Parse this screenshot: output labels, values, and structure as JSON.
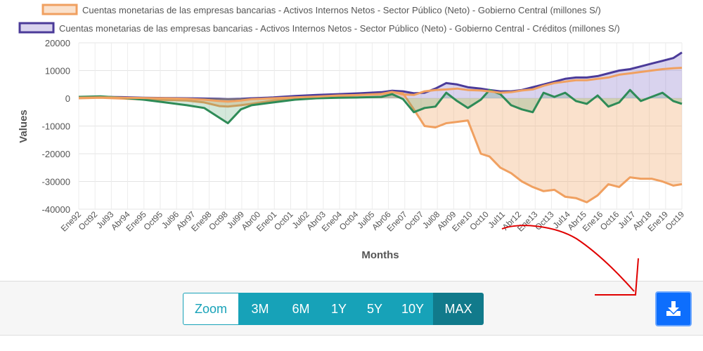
{
  "chart_data": {
    "type": "area",
    "title": "",
    "xlabel": "Months",
    "ylabel": "Values",
    "ylim": [
      -40000,
      20000
    ],
    "y_ticks": [
      "20000",
      "10000",
      "0",
      "-10000",
      "-20000",
      "-30000",
      "-40000"
    ],
    "x_tick_labels": [
      "Ene92",
      "Oct92",
      "Jul93",
      "Abr94",
      "Ene95",
      "Oct95",
      "Jul96",
      "Abr97",
      "Ene98",
      "Oct98",
      "Jul99",
      "Abr00",
      "Ene01",
      "Oct01",
      "Jul02",
      "Abr03",
      "Ene04",
      "Oct04",
      "Jul05",
      "Abr06",
      "Ene07",
      "Oct07",
      "Jul08",
      "Abr09",
      "Ene10",
      "Oct10",
      "Jul11",
      "Abr12",
      "Ene13",
      "Oct13",
      "Jul14",
      "Abr15",
      "Ene16",
      "Oct16",
      "Jul17",
      "Abr18",
      "Ene19",
      "Oct19"
    ],
    "x": [
      1992.0,
      1993.0,
      1994.0,
      1995.0,
      1996.0,
      1997.0,
      1997.8,
      1998.5,
      1998.9,
      1999.5,
      2000.0,
      2001.0,
      2002.0,
      2003.0,
      2004.0,
      2005.0,
      2006.0,
      2006.5,
      2007.0,
      2007.5,
      2008.0,
      2008.5,
      2009.0,
      2009.5,
      2010.0,
      2010.6,
      2011.0,
      2011.5,
      2012.0,
      2012.5,
      2013.0,
      2013.5,
      2014.0,
      2014.5,
      2015.0,
      2015.5,
      2016.0,
      2016.5,
      2017.0,
      2017.5,
      2018.0,
      2018.5,
      2019.0,
      2019.5,
      2019.9
    ],
    "series": [
      {
        "name": "Cuentas monetarias de las empresas bancarias - Activos Internos Netos - Sector Público (Neto) - Gobierno Central (millones S/)",
        "color": "#f0a060",
        "fill": "rgba(242,170,110,0.35)",
        "values": [
          0,
          200,
          -100,
          -400,
          -600,
          -800,
          -1500,
          -2800,
          -3000,
          -2500,
          -2000,
          -800,
          0,
          400,
          800,
          1200,
          1500,
          2200,
          1800,
          -4000,
          -10000,
          -10500,
          -9000,
          -8500,
          -8000,
          -20000,
          -21000,
          -25000,
          -27000,
          -30000,
          -32000,
          -33500,
          -33000,
          -35500,
          -36000,
          -37500,
          -35000,
          -31000,
          -32000,
          -28500,
          -29000,
          -29000,
          -30000,
          -31500,
          -31000
        ]
      },
      {
        "name": "Cuentas monetarias de las empresas bancarias - Activos Internos Netos - Sector Público (Neto) - Gobierno Central - Créditos (millones S/)",
        "color": "#4b3b99",
        "fill": "rgba(130,110,200,0.30)",
        "values": [
          300,
          500,
          400,
          200,
          100,
          0,
          -100,
          -200,
          -300,
          -200,
          0,
          300,
          800,
          1200,
          1500,
          1800,
          2200,
          2700,
          2500,
          1800,
          2000,
          3500,
          5500,
          5000,
          4000,
          3500,
          3000,
          2500,
          2500,
          3000,
          4000,
          5000,
          6000,
          7000,
          7500,
          7500,
          8000,
          9000,
          10000,
          10500,
          11500,
          12500,
          13500,
          14500,
          16500
        ]
      },
      {
        "name": "",
        "color": "#f0a060",
        "fill": "none",
        "values": [
          200,
          300,
          200,
          100,
          0,
          -200,
          -500,
          -1000,
          -1200,
          -800,
          -300,
          0,
          300,
          600,
          1000,
          1200,
          1600,
          2300,
          1400,
          1200,
          2500,
          3000,
          3200,
          3500,
          3000,
          2800,
          2500,
          2000,
          2200,
          2800,
          3200,
          4500,
          5500,
          6000,
          6500,
          6500,
          7000,
          7500,
          8500,
          9000,
          9500,
          10000,
          10500,
          10800,
          11000
        ]
      },
      {
        "name": "",
        "color": "#2e8b57",
        "fill": "rgba(60,150,90,0.22)",
        "values": [
          500,
          700,
          200,
          -500,
          -1500,
          -2500,
          -3500,
          -7000,
          -9000,
          -4000,
          -2500,
          -1500,
          -500,
          0,
          200,
          300,
          500,
          1500,
          -300,
          -5000,
          -3500,
          -3000,
          2000,
          -1000,
          -3500,
          -500,
          3000,
          1500,
          -2500,
          -4000,
          -5000,
          2000,
          500,
          2000,
          -1000,
          -2000,
          1000,
          -3000,
          -1500,
          3000,
          -1000,
          500,
          2000,
          -1000,
          -2000
        ]
      }
    ]
  },
  "toolbar": {
    "zoom_label": "Zoom",
    "ranges": [
      "3M",
      "6M",
      "1Y",
      "5Y",
      "10Y",
      "MAX"
    ],
    "active_range": "MAX"
  },
  "colors": {
    "accent": "#17a2b8",
    "accent_active": "#117a8b",
    "download": "#0d6efd",
    "annotation": "#e00000"
  },
  "icons": {
    "download": "download-icon"
  }
}
